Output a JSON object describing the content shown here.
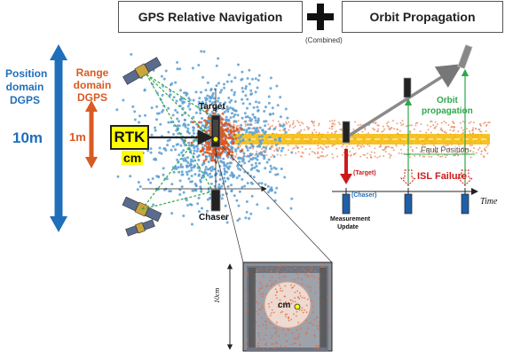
{
  "headers": {
    "left": "GPS Relative Navigation",
    "right": "Orbit Propagation",
    "combined_note": "(Combined)"
  },
  "left_scale": {
    "position_label": [
      "Position",
      "domain",
      "DGPS"
    ],
    "position_value": "10m",
    "range_label": [
      "Range",
      "domain",
      "DGPS"
    ],
    "range_value": "1m"
  },
  "center": {
    "rtk_label": "RTK",
    "cm_label": "cm",
    "target_label": "Target",
    "chaser_label": "Chaser"
  },
  "right_panel": {
    "orbit_propagation_label": [
      "Orbit",
      "propagation"
    ],
    "fault_position_label": "Fault Position",
    "target_small": "(Target)",
    "chaser_small": "(Chaser)",
    "isl_failure_label": "ISL Failure",
    "time_label": "Time",
    "measurement_update_label": [
      "Measurement",
      "Update"
    ]
  },
  "zoom": {
    "scale_label": "10cm",
    "cm_label": "cm"
  },
  "colors": {
    "blue": "#1f6fba",
    "orange": "#d95a23",
    "green": "#2ea84a",
    "red": "#cc1a1a",
    "yellow": "#ffff00",
    "band_yellow": "#f5b800"
  }
}
